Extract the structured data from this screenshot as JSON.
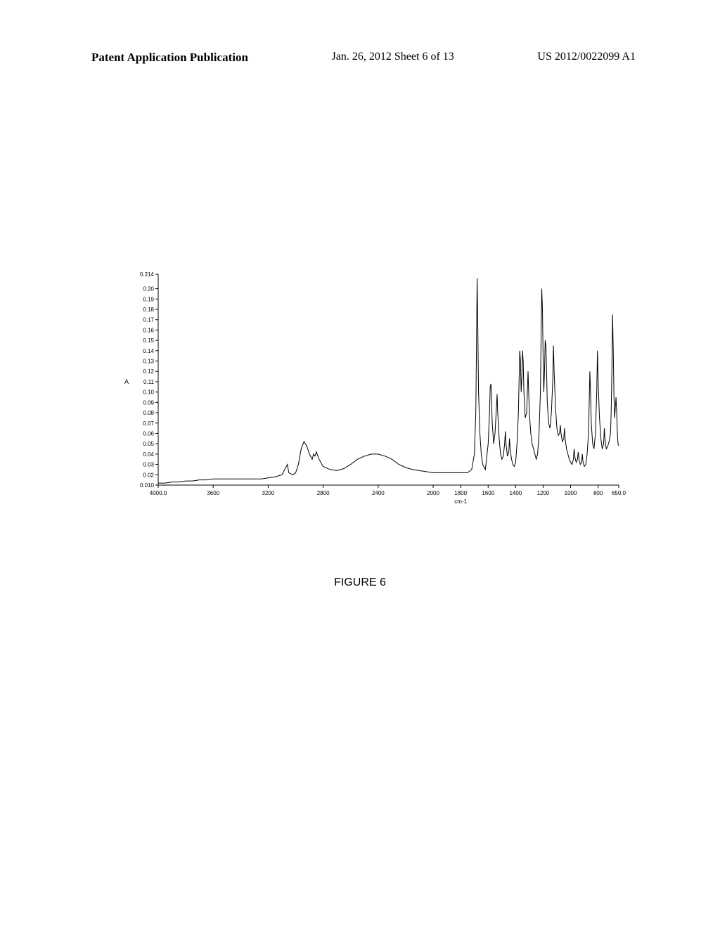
{
  "header": {
    "left": "Patent Application Publication",
    "center": "Jan. 26, 2012  Sheet 6 of 13",
    "right": "US 2012/0022099 A1"
  },
  "figure_caption": "FIGURE 6",
  "chart": {
    "type": "line",
    "xlabel": "cm-1",
    "ylabel": "A",
    "xlim": [
      4000.0,
      650.0
    ],
    "ylim": [
      0.01,
      0.214
    ],
    "xticks": [
      4000.0,
      3600,
      3200,
      2800,
      2400,
      2000,
      1800,
      1600,
      1400,
      1200,
      1000,
      800,
      650.0
    ],
    "yticks": [
      0.01,
      0.02,
      0.03,
      0.04,
      0.05,
      0.06,
      0.07,
      0.08,
      0.09,
      0.1,
      0.11,
      0.12,
      0.13,
      0.14,
      0.15,
      0.16,
      0.17,
      0.18,
      0.19,
      0.2,
      0.214
    ],
    "ytick_labels": [
      "0.010",
      "0.02",
      "0.03",
      "0.04",
      "0.05",
      "0.06",
      "0.07",
      "0.08",
      "0.09",
      "0.10",
      "0.11",
      "0.12",
      "0.13",
      "0.14",
      "0.15",
      "0.16",
      "0.17",
      "0.18",
      "0.19",
      "0.20",
      "0.214"
    ],
    "line_color": "#000000",
    "line_width": 1.0,
    "background_color": "#ffffff",
    "axis_color": "#000000",
    "tick_fontsize": 8,
    "label_fontsize": 9,
    "data": [
      [
        4000,
        0.012
      ],
      [
        3950,
        0.012
      ],
      [
        3900,
        0.013
      ],
      [
        3850,
        0.013
      ],
      [
        3800,
        0.014
      ],
      [
        3750,
        0.014
      ],
      [
        3700,
        0.015
      ],
      [
        3650,
        0.015
      ],
      [
        3600,
        0.016
      ],
      [
        3550,
        0.016
      ],
      [
        3500,
        0.016
      ],
      [
        3450,
        0.016
      ],
      [
        3400,
        0.016
      ],
      [
        3350,
        0.016
      ],
      [
        3300,
        0.016
      ],
      [
        3250,
        0.016
      ],
      [
        3200,
        0.017
      ],
      [
        3150,
        0.018
      ],
      [
        3100,
        0.02
      ],
      [
        3080,
        0.025
      ],
      [
        3060,
        0.03
      ],
      [
        3050,
        0.022
      ],
      [
        3020,
        0.02
      ],
      [
        3000,
        0.022
      ],
      [
        2980,
        0.03
      ],
      [
        2960,
        0.045
      ],
      [
        2940,
        0.052
      ],
      [
        2920,
        0.048
      ],
      [
        2900,
        0.04
      ],
      [
        2880,
        0.035
      ],
      [
        2870,
        0.04
      ],
      [
        2860,
        0.038
      ],
      [
        2850,
        0.042
      ],
      [
        2830,
        0.035
      ],
      [
        2800,
        0.028
      ],
      [
        2750,
        0.025
      ],
      [
        2700,
        0.024
      ],
      [
        2650,
        0.026
      ],
      [
        2600,
        0.03
      ],
      [
        2550,
        0.035
      ],
      [
        2500,
        0.038
      ],
      [
        2450,
        0.04
      ],
      [
        2400,
        0.04
      ],
      [
        2350,
        0.038
      ],
      [
        2300,
        0.035
      ],
      [
        2250,
        0.03
      ],
      [
        2200,
        0.027
      ],
      [
        2150,
        0.025
      ],
      [
        2100,
        0.024
      ],
      [
        2050,
        0.023
      ],
      [
        2000,
        0.022
      ],
      [
        1950,
        0.022
      ],
      [
        1900,
        0.022
      ],
      [
        1850,
        0.022
      ],
      [
        1800,
        0.022
      ],
      [
        1750,
        0.022
      ],
      [
        1720,
        0.025
      ],
      [
        1700,
        0.04
      ],
      [
        1690,
        0.08
      ],
      [
        1685,
        0.14
      ],
      [
        1680,
        0.21
      ],
      [
        1675,
        0.16
      ],
      [
        1670,
        0.1
      ],
      [
        1660,
        0.06
      ],
      [
        1650,
        0.04
      ],
      [
        1640,
        0.03
      ],
      [
        1620,
        0.025
      ],
      [
        1600,
        0.05
      ],
      [
        1590,
        0.08
      ],
      [
        1585,
        0.105
      ],
      [
        1580,
        0.108
      ],
      [
        1575,
        0.09
      ],
      [
        1570,
        0.07
      ],
      [
        1560,
        0.05
      ],
      [
        1550,
        0.06
      ],
      [
        1540,
        0.085
      ],
      [
        1535,
        0.098
      ],
      [
        1530,
        0.08
      ],
      [
        1520,
        0.055
      ],
      [
        1510,
        0.04
      ],
      [
        1500,
        0.035
      ],
      [
        1490,
        0.038
      ],
      [
        1480,
        0.05
      ],
      [
        1475,
        0.062
      ],
      [
        1470,
        0.05
      ],
      [
        1460,
        0.038
      ],
      [
        1450,
        0.042
      ],
      [
        1445,
        0.055
      ],
      [
        1440,
        0.045
      ],
      [
        1430,
        0.035
      ],
      [
        1420,
        0.03
      ],
      [
        1410,
        0.028
      ],
      [
        1400,
        0.032
      ],
      [
        1390,
        0.05
      ],
      [
        1380,
        0.08
      ],
      [
        1375,
        0.11
      ],
      [
        1370,
        0.14
      ],
      [
        1365,
        0.13
      ],
      [
        1360,
        0.1
      ],
      [
        1355,
        0.115
      ],
      [
        1350,
        0.14
      ],
      [
        1345,
        0.13
      ],
      [
        1340,
        0.1
      ],
      [
        1330,
        0.075
      ],
      [
        1320,
        0.08
      ],
      [
        1315,
        0.1
      ],
      [
        1310,
        0.12
      ],
      [
        1305,
        0.1
      ],
      [
        1300,
        0.08
      ],
      [
        1290,
        0.06
      ],
      [
        1280,
        0.05
      ],
      [
        1270,
        0.045
      ],
      [
        1260,
        0.04
      ],
      [
        1250,
        0.035
      ],
      [
        1240,
        0.04
      ],
      [
        1230,
        0.06
      ],
      [
        1220,
        0.1
      ],
      [
        1215,
        0.15
      ],
      [
        1210,
        0.2
      ],
      [
        1205,
        0.18
      ],
      [
        1200,
        0.13
      ],
      [
        1195,
        0.1
      ],
      [
        1190,
        0.12
      ],
      [
        1185,
        0.15
      ],
      [
        1180,
        0.145
      ],
      [
        1175,
        0.12
      ],
      [
        1170,
        0.09
      ],
      [
        1160,
        0.07
      ],
      [
        1150,
        0.065
      ],
      [
        1140,
        0.08
      ],
      [
        1130,
        0.11
      ],
      [
        1125,
        0.145
      ],
      [
        1120,
        0.12
      ],
      [
        1110,
        0.085
      ],
      [
        1100,
        0.065
      ],
      [
        1090,
        0.058
      ],
      [
        1080,
        0.06
      ],
      [
        1075,
        0.068
      ],
      [
        1070,
        0.06
      ],
      [
        1060,
        0.052
      ],
      [
        1050,
        0.055
      ],
      [
        1045,
        0.065
      ],
      [
        1040,
        0.055
      ],
      [
        1030,
        0.045
      ],
      [
        1020,
        0.04
      ],
      [
        1010,
        0.035
      ],
      [
        1000,
        0.032
      ],
      [
        990,
        0.03
      ],
      [
        980,
        0.035
      ],
      [
        975,
        0.045
      ],
      [
        970,
        0.038
      ],
      [
        960,
        0.032
      ],
      [
        950,
        0.035
      ],
      [
        945,
        0.042
      ],
      [
        940,
        0.035
      ],
      [
        930,
        0.03
      ],
      [
        920,
        0.032
      ],
      [
        915,
        0.04
      ],
      [
        910,
        0.032
      ],
      [
        900,
        0.028
      ],
      [
        890,
        0.03
      ],
      [
        880,
        0.04
      ],
      [
        870,
        0.06
      ],
      [
        865,
        0.09
      ],
      [
        860,
        0.12
      ],
      [
        855,
        0.1
      ],
      [
        850,
        0.07
      ],
      [
        840,
        0.05
      ],
      [
        830,
        0.045
      ],
      [
        820,
        0.06
      ],
      [
        810,
        0.1
      ],
      [
        805,
        0.14
      ],
      [
        800,
        0.11
      ],
      [
        790,
        0.075
      ],
      [
        780,
        0.055
      ],
      [
        770,
        0.045
      ],
      [
        760,
        0.05
      ],
      [
        755,
        0.065
      ],
      [
        750,
        0.055
      ],
      [
        745,
        0.048
      ],
      [
        740,
        0.045
      ],
      [
        730,
        0.048
      ],
      [
        720,
        0.052
      ],
      [
        710,
        0.06
      ],
      [
        705,
        0.08
      ],
      [
        700,
        0.12
      ],
      [
        695,
        0.175
      ],
      [
        690,
        0.14
      ],
      [
        685,
        0.095
      ],
      [
        680,
        0.075
      ],
      [
        675,
        0.085
      ],
      [
        670,
        0.095
      ],
      [
        665,
        0.08
      ],
      [
        660,
        0.06
      ],
      [
        655,
        0.05
      ],
      [
        650,
        0.048
      ]
    ]
  }
}
